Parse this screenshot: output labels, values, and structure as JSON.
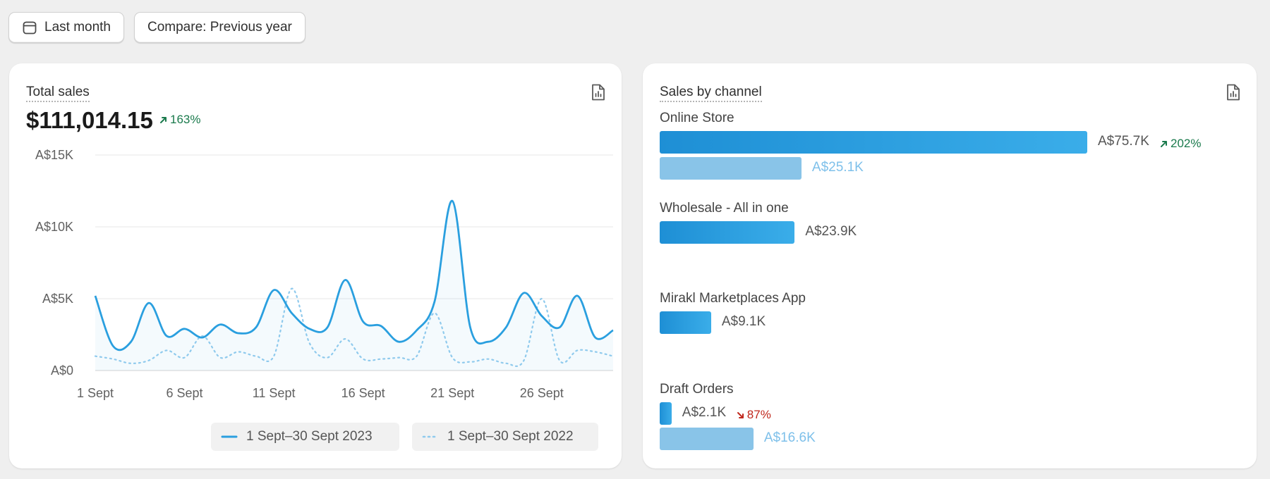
{
  "toolbar": {
    "date_range_label": "Last month",
    "compare_label": "Compare: Previous year",
    "date_icon": "calendar-icon"
  },
  "total_sales": {
    "title": "Total sales",
    "value": "$111,014.15",
    "change": "163%",
    "change_direction": "up",
    "export_icon": "file-chart-icon",
    "legend": [
      {
        "label": "1 Sept–30 Sept 2023",
        "style": "solid"
      },
      {
        "label": "1 Sept–30 Sept 2022",
        "style": "dotted"
      }
    ]
  },
  "sales_by_channel": {
    "title": "Sales by channel",
    "export_icon": "file-chart-icon",
    "channels": [
      {
        "name": "Online Store",
        "current": 75.7,
        "current_label": "A$75.7K",
        "previous": 25.1,
        "previous_label": "A$25.1K",
        "change": "202%",
        "change_direction": "up"
      },
      {
        "name": "Wholesale - All in one",
        "current": 23.9,
        "current_label": "A$23.9K",
        "previous": null,
        "previous_label": "",
        "change": "",
        "change_direction": ""
      },
      {
        "name": "Mirakl Marketplaces App",
        "current": 9.1,
        "current_label": "A$9.1K",
        "previous": null,
        "previous_label": "",
        "change": "",
        "change_direction": ""
      },
      {
        "name": "Draft Orders",
        "current": 2.1,
        "current_label": "A$2.1K",
        "previous": 16.6,
        "previous_label": "A$16.6K",
        "change": "87%",
        "change_direction": "down"
      }
    ]
  },
  "colors": {
    "current_series": "#2a9fdf",
    "previous_series": "#8fcaed",
    "positive": "#1a7a4c",
    "negative": "#c0281d"
  },
  "chart_data": {
    "type": "line",
    "title": "Total sales",
    "xlabel": "",
    "ylabel": "",
    "ylim": [
      0,
      15000
    ],
    "y_ticks": [
      {
        "value": 0,
        "label": "A$0"
      },
      {
        "value": 5000,
        "label": "A$5K"
      },
      {
        "value": 10000,
        "label": "A$10K"
      },
      {
        "value": 15000,
        "label": "A$15K"
      }
    ],
    "x_ticks": [
      {
        "day": 1,
        "label": "1 Sept"
      },
      {
        "day": 6,
        "label": "6 Sept"
      },
      {
        "day": 11,
        "label": "11 Sept"
      },
      {
        "day": 16,
        "label": "16 Sept"
      },
      {
        "day": 21,
        "label": "21 Sept"
      },
      {
        "day": 26,
        "label": "26 Sept"
      }
    ],
    "x": [
      1,
      2,
      3,
      4,
      5,
      6,
      7,
      8,
      9,
      10,
      11,
      12,
      13,
      14,
      15,
      16,
      17,
      18,
      19,
      20,
      21,
      22,
      23,
      24,
      25,
      26,
      27,
      28,
      29,
      30
    ],
    "grid": true,
    "series": [
      {
        "name": "1 Sept–30 Sept 2023",
        "style": "solid",
        "values": [
          5200,
          1700,
          2000,
          4700,
          2400,
          2900,
          2300,
          3200,
          2600,
          3000,
          5600,
          4000,
          2900,
          3000,
          6300,
          3400,
          3100,
          2000,
          2800,
          4800,
          11800,
          3000,
          2000,
          3000,
          5400,
          3800,
          3000,
          5200,
          2300,
          2800
        ]
      },
      {
        "name": "1 Sept–30 Sept 2022",
        "style": "dotted",
        "values": [
          1000,
          800,
          500,
          700,
          1400,
          900,
          2400,
          900,
          1300,
          1000,
          1000,
          5700,
          1900,
          900,
          2200,
          800,
          800,
          900,
          1000,
          4000,
          900,
          600,
          800,
          500,
          700,
          5000,
          700,
          1400,
          1300,
          1000
        ]
      }
    ]
  }
}
